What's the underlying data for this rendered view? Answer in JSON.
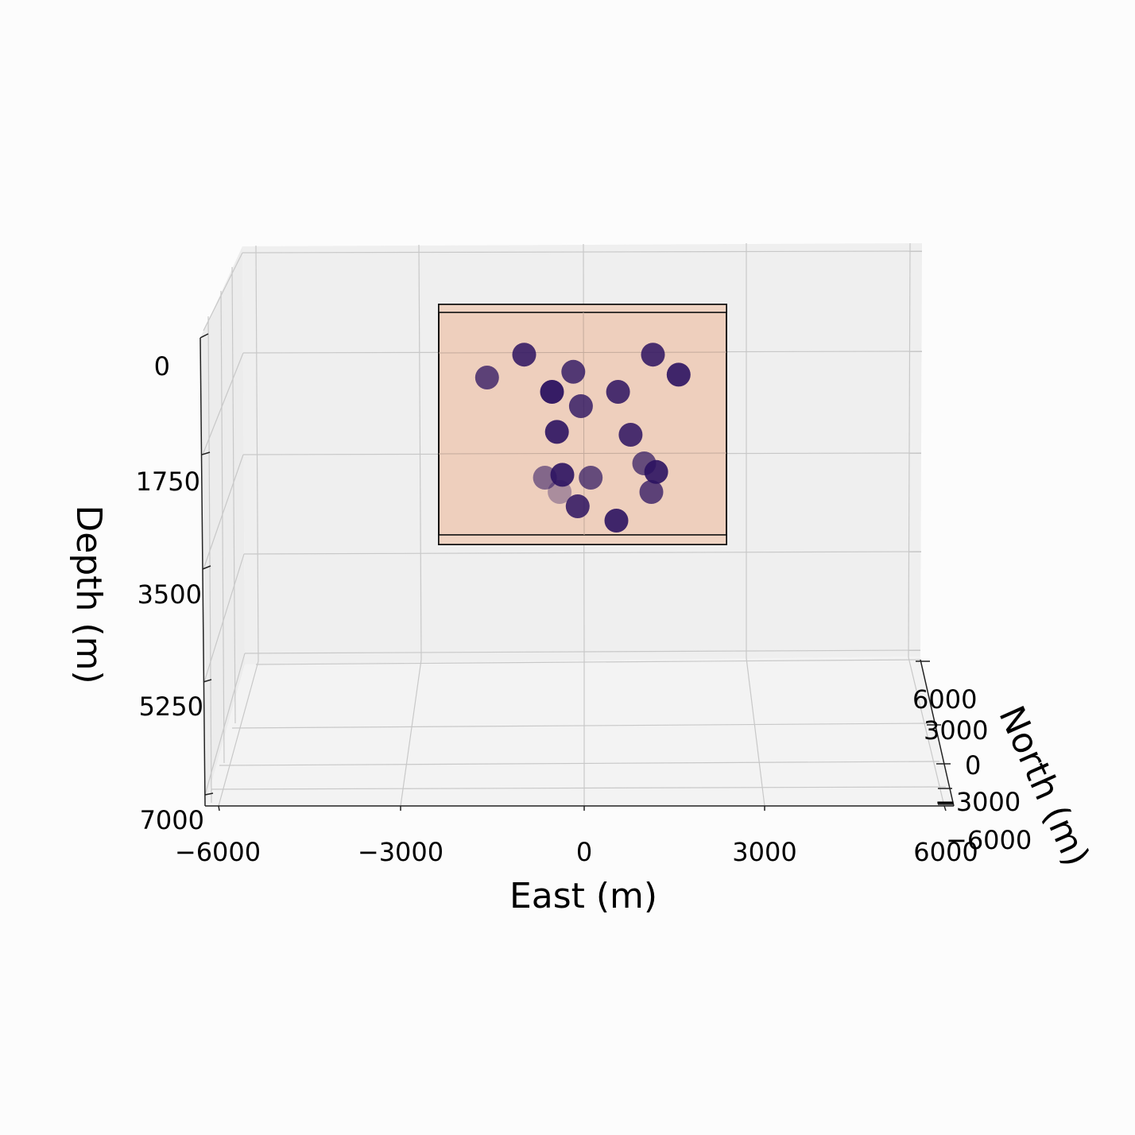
{
  "chart_data": {
    "type": "scatter",
    "projection": "3d",
    "grid": true,
    "axes": {
      "x": {
        "label": "East (m)",
        "ticks": [
          -6000,
          -3000,
          0,
          3000,
          6000
        ],
        "tick_labels": [
          "−6000",
          "−3000",
          "0",
          "3000",
          "6000"
        ],
        "lim": [
          -6000,
          6000
        ]
      },
      "y": {
        "label": "North (m)",
        "ticks": [
          6000,
          3000,
          0,
          -3000,
          -6000
        ],
        "tick_labels": [
          "6000",
          "3000",
          "0",
          "−3000",
          "−6000"
        ],
        "lim": [
          -6000,
          6000
        ]
      },
      "z": {
        "label": "Depth (m)",
        "ticks": [
          0,
          1750,
          3500,
          5250,
          7000
        ],
        "tick_labels": [
          "0",
          "1750",
          "3500",
          "5250",
          "7000"
        ],
        "lim": [
          0,
          7000
        ],
        "inverted": true
      }
    },
    "box": {
      "east": [
        -2400,
        2400
      ],
      "depth_extent_note": "shaded box",
      "color": "#eecfbd"
    },
    "points": [
      {
        "east": -1100,
        "depth": -150,
        "opacity": 0.85
      },
      {
        "east": 1260,
        "depth": -150,
        "opacity": 0.85
      },
      {
        "east": -1780,
        "depth": 250,
        "opacity": 0.75
      },
      {
        "east": -200,
        "depth": 150,
        "opacity": 0.8
      },
      {
        "east": 1730,
        "depth": 200,
        "opacity": 0.9
      },
      {
        "east": -590,
        "depth": 500,
        "opacity": 0.95
      },
      {
        "east": 620,
        "depth": 500,
        "opacity": 0.85
      },
      {
        "east": -60,
        "depth": 750,
        "opacity": 0.8
      },
      {
        "east": -500,
        "depth": 1200,
        "opacity": 0.9
      },
      {
        "east": 850,
        "depth": 1250,
        "opacity": 0.85
      },
      {
        "east": 1100,
        "depth": 1750,
        "opacity": 0.7
      },
      {
        "east": 1320,
        "depth": 1900,
        "opacity": 0.9
      },
      {
        "east": -720,
        "depth": 2000,
        "opacity": 0.55
      },
      {
        "east": -400,
        "depth": 1950,
        "opacity": 0.9
      },
      {
        "east": 120,
        "depth": 2000,
        "opacity": 0.7
      },
      {
        "east": -450,
        "depth": 2250,
        "opacity": 0.35
      },
      {
        "east": 1230,
        "depth": 2250,
        "opacity": 0.75
      },
      {
        "east": -120,
        "depth": 2500,
        "opacity": 0.85
      },
      {
        "east": 590,
        "depth": 2750,
        "opacity": 0.9
      }
    ],
    "point_color": "#2b1260"
  }
}
